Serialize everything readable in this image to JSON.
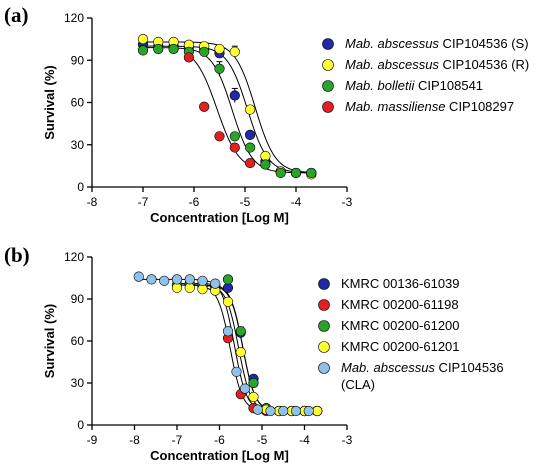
{
  "chart_data": [
    {
      "type": "scatter",
      "panel_label": "(a)",
      "xlabel": "Concentration [Log M]",
      "ylabel": "Survival (%)",
      "xlim": [
        -8,
        -3
      ],
      "ylim": [
        0,
        120
      ],
      "xticks": [
        "-8",
        "-7",
        "-6",
        "-5",
        "-4",
        "-3"
      ],
      "yticks": [
        "0",
        "30",
        "60",
        "90",
        "120"
      ],
      "grid": false,
      "legend_position": "right",
      "series": [
        {
          "name_italic": "Mab. abscessus",
          "name_rest": " CIP104536 (S)",
          "color": "#1f2aa6",
          "fit": {
            "top": 100,
            "bottom": 10,
            "ic50": -4.95,
            "hill": 2.2
          },
          "points": [
            {
              "x": -7.0,
              "y": 101
            },
            {
              "x": -6.7,
              "y": 100
            },
            {
              "x": -6.4,
              "y": 100
            },
            {
              "x": -6.1,
              "y": 99
            },
            {
              "x": -5.8,
              "y": 98
            },
            {
              "x": -5.5,
              "y": 95
            },
            {
              "x": -5.2,
              "y": 65,
              "err": 5
            },
            {
              "x": -4.9,
              "y": 37
            },
            {
              "x": -4.6,
              "y": 18
            },
            {
              "x": -4.3,
              "y": 11
            },
            {
              "x": -4.0,
              "y": 10
            },
            {
              "x": -3.7,
              "y": 10
            }
          ]
        },
        {
          "name_italic": "Mab. abscessus",
          "name_rest": " CIP104536 (R)",
          "color": "#ffff33",
          "fit": {
            "top": 103,
            "bottom": 10,
            "ic50": -4.8,
            "hill": 2.2
          },
          "points": [
            {
              "x": -7.0,
              "y": 105
            },
            {
              "x": -6.7,
              "y": 103
            },
            {
              "x": -6.4,
              "y": 103
            },
            {
              "x": -6.1,
              "y": 101
            },
            {
              "x": -5.8,
              "y": 100
            },
            {
              "x": -5.5,
              "y": 98
            },
            {
              "x": -5.2,
              "y": 96,
              "err": 4
            },
            {
              "x": -4.9,
              "y": 55
            },
            {
              "x": -4.6,
              "y": 22
            },
            {
              "x": -4.3,
              "y": 11
            },
            {
              "x": -4.0,
              "y": 10
            },
            {
              "x": -3.7,
              "y": 9
            }
          ]
        },
        {
          "name_italic": "Mab. bolletii",
          "name_rest": " CIP108541",
          "color": "#29a329",
          "fit": {
            "top": 99,
            "bottom": 10,
            "ic50": -5.25,
            "hill": 2.2
          },
          "points": [
            {
              "x": -7.0,
              "y": 97
            },
            {
              "x": -6.7,
              "y": 98
            },
            {
              "x": -6.4,
              "y": 98
            },
            {
              "x": -6.1,
              "y": 96
            },
            {
              "x": -5.8,
              "y": 96
            },
            {
              "x": -5.5,
              "y": 84,
              "err": 5
            },
            {
              "x": -5.2,
              "y": 36
            },
            {
              "x": -4.9,
              "y": 28
            },
            {
              "x": -4.6,
              "y": 16
            },
            {
              "x": -4.3,
              "y": 10
            },
            {
              "x": -4.0,
              "y": 10
            },
            {
              "x": -3.7,
              "y": 10
            }
          ]
        },
        {
          "name_italic": "Mab. massiliense",
          "name_rest": " CIP108297",
          "color": "#e12121",
          "fit": {
            "top": 100,
            "bottom": 11,
            "ic50": -5.55,
            "hill": 2.0
          },
          "points": [
            {
              "x": -6.1,
              "y": 92
            },
            {
              "x": -5.8,
              "y": 57
            },
            {
              "x": -5.5,
              "y": 36
            },
            {
              "x": -5.2,
              "y": 28
            },
            {
              "x": -4.9,
              "y": 17
            }
          ]
        }
      ]
    },
    {
      "type": "scatter",
      "panel_label": "(b)",
      "xlabel": "Concentration [Log M]",
      "ylabel": "Survival (%)",
      "xlim": [
        -9,
        -3
      ],
      "ylim": [
        0,
        120
      ],
      "xticks": [
        "-9",
        "-8",
        "-7",
        "-6",
        "-5",
        "-4",
        "-3"
      ],
      "yticks": [
        "0",
        "30",
        "60",
        "90",
        "120"
      ],
      "grid": false,
      "legend_position": "right",
      "series": [
        {
          "name_italic": "",
          "name_rest": "KMRC 00136-61039",
          "color": "#1f2aa6",
          "fit": {
            "top": 100,
            "bottom": 10,
            "ic50": -5.45,
            "hill": 3.0
          },
          "points": [
            {
              "x": -7.0,
              "y": 100
            },
            {
              "x": -6.7,
              "y": 101
            },
            {
              "x": -6.4,
              "y": 101
            },
            {
              "x": -6.1,
              "y": 99
            },
            {
              "x": -5.8,
              "y": 98
            },
            {
              "x": -5.5,
              "y": 66
            },
            {
              "x": -5.2,
              "y": 33
            },
            {
              "x": -4.9,
              "y": 12
            },
            {
              "x": -4.6,
              "y": 10
            },
            {
              "x": -4.3,
              "y": 10
            },
            {
              "x": -4.0,
              "y": 10
            },
            {
              "x": -3.7,
              "y": 10
            }
          ]
        },
        {
          "name_italic": "",
          "name_rest": "KMRC 00200-61198",
          "color": "#e12121",
          "fit": {
            "top": 100,
            "bottom": 10,
            "ic50": -5.75,
            "hill": 3.0
          },
          "points": [
            {
              "x": -7.0,
              "y": 99
            },
            {
              "x": -6.7,
              "y": 100
            },
            {
              "x": -6.4,
              "y": 99
            },
            {
              "x": -6.1,
              "y": 97
            },
            {
              "x": -5.8,
              "y": 62
            },
            {
              "x": -5.5,
              "y": 22
            },
            {
              "x": -5.2,
              "y": 12
            },
            {
              "x": -4.9,
              "y": 10
            },
            {
              "x": -4.6,
              "y": 10
            },
            {
              "x": -4.3,
              "y": 10
            },
            {
              "x": -4.0,
              "y": 10
            },
            {
              "x": -3.7,
              "y": 10
            }
          ]
        },
        {
          "name_italic": "",
          "name_rest": "KMRC 00200-61200",
          "color": "#29a329",
          "fit": {
            "top": 101,
            "bottom": 10,
            "ic50": -5.45,
            "hill": 3.0
          },
          "points": [
            {
              "x": -7.0,
              "y": 100
            },
            {
              "x": -6.7,
              "y": 101
            },
            {
              "x": -6.4,
              "y": 101
            },
            {
              "x": -6.1,
              "y": 100
            },
            {
              "x": -5.8,
              "y": 104
            },
            {
              "x": -5.5,
              "y": 67,
              "err": 3
            },
            {
              "x": -5.2,
              "y": 30
            },
            {
              "x": -4.9,
              "y": 12
            },
            {
              "x": -4.6,
              "y": 10
            },
            {
              "x": -4.3,
              "y": 10
            },
            {
              "x": -4.0,
              "y": 10
            },
            {
              "x": -3.7,
              "y": 10
            }
          ]
        },
        {
          "name_italic": "",
          "name_rest": "KMRC 00200-61201",
          "color": "#ffff33",
          "fit": {
            "top": 100,
            "bottom": 10,
            "ic50": -5.55,
            "hill": 3.0
          },
          "points": [
            {
              "x": -7.0,
              "y": 98
            },
            {
              "x": -6.7,
              "y": 98
            },
            {
              "x": -6.4,
              "y": 97
            },
            {
              "x": -6.1,
              "y": 96
            },
            {
              "x": -5.8,
              "y": 88
            },
            {
              "x": -5.5,
              "y": 52
            },
            {
              "x": -5.2,
              "y": 20
            },
            {
              "x": -4.9,
              "y": 11
            },
            {
              "x": -4.6,
              "y": 10
            },
            {
              "x": -4.3,
              "y": 10
            },
            {
              "x": -4.0,
              "y": 10
            },
            {
              "x": -3.7,
              "y": 10
            }
          ]
        },
        {
          "name_italic": "Mab. abscessus",
          "name_rest": " CIP104536",
          "name_line2": "(CLA)",
          "color": "#8ec2ea",
          "fit": {
            "top": 104,
            "bottom": 10,
            "ic50": -5.65,
            "hill": 3.0
          },
          "points": [
            {
              "x": -7.9,
              "y": 106
            },
            {
              "x": -7.6,
              "y": 104
            },
            {
              "x": -7.3,
              "y": 103
            },
            {
              "x": -7.0,
              "y": 104
            },
            {
              "x": -6.7,
              "y": 104
            },
            {
              "x": -6.4,
              "y": 103
            },
            {
              "x": -6.1,
              "y": 101
            },
            {
              "x": -5.8,
              "y": 67
            },
            {
              "x": -5.6,
              "y": 38
            },
            {
              "x": -5.4,
              "y": 26
            },
            {
              "x": -5.1,
              "y": 11
            },
            {
              "x": -4.8,
              "y": 10
            },
            {
              "x": -4.5,
              "y": 10
            },
            {
              "x": -4.2,
              "y": 10
            },
            {
              "x": -3.9,
              "y": 10
            }
          ]
        }
      ]
    }
  ]
}
